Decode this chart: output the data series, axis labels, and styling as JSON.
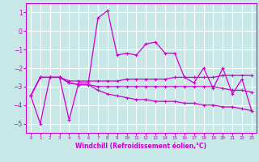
{
  "xlabel": "Windchill (Refroidissement éolien,°C)",
  "background_color": "#c8e8e8",
  "grid_color": "#ffffff",
  "line_color": "#cc00cc",
  "x": [
    0,
    1,
    2,
    3,
    4,
    5,
    6,
    7,
    8,
    9,
    10,
    11,
    12,
    13,
    14,
    15,
    16,
    17,
    18,
    19,
    20,
    21,
    22,
    23
  ],
  "line1": [
    -3.5,
    -5.0,
    -2.5,
    -2.5,
    -4.8,
    -2.8,
    -2.8,
    0.7,
    1.1,
    -1.3,
    -1.2,
    -1.3,
    -0.7,
    -0.6,
    -1.2,
    -1.2,
    -2.5,
    -2.8,
    -2.0,
    -3.1,
    -2.0,
    -3.4,
    -2.6,
    -4.3
  ],
  "line2": [
    -3.5,
    -2.5,
    -2.5,
    -2.5,
    -2.7,
    -2.7,
    -2.7,
    -2.7,
    -2.7,
    -2.7,
    -2.6,
    -2.6,
    -2.6,
    -2.6,
    -2.6,
    -2.5,
    -2.5,
    -2.5,
    -2.5,
    -2.5,
    -2.4,
    -2.4,
    -2.4,
    -2.4
  ],
  "line3": [
    -3.5,
    -2.5,
    -2.5,
    -2.5,
    -2.8,
    -2.9,
    -2.9,
    -3.0,
    -3.0,
    -3.0,
    -3.0,
    -3.0,
    -3.0,
    -3.0,
    -3.0,
    -3.0,
    -3.0,
    -3.0,
    -3.0,
    -3.0,
    -3.1,
    -3.2,
    -3.2,
    -3.3
  ],
  "line4": [
    -3.5,
    -2.5,
    -2.5,
    -2.5,
    -2.8,
    -2.9,
    -2.9,
    -3.2,
    -3.4,
    -3.5,
    -3.6,
    -3.7,
    -3.7,
    -3.8,
    -3.8,
    -3.8,
    -3.9,
    -3.9,
    -4.0,
    -4.0,
    -4.1,
    -4.1,
    -4.2,
    -4.3
  ],
  "ylim": [
    -5.5,
    1.5
  ],
  "yticks": [
    1,
    0,
    -1,
    -2,
    -3,
    -4,
    -5
  ]
}
